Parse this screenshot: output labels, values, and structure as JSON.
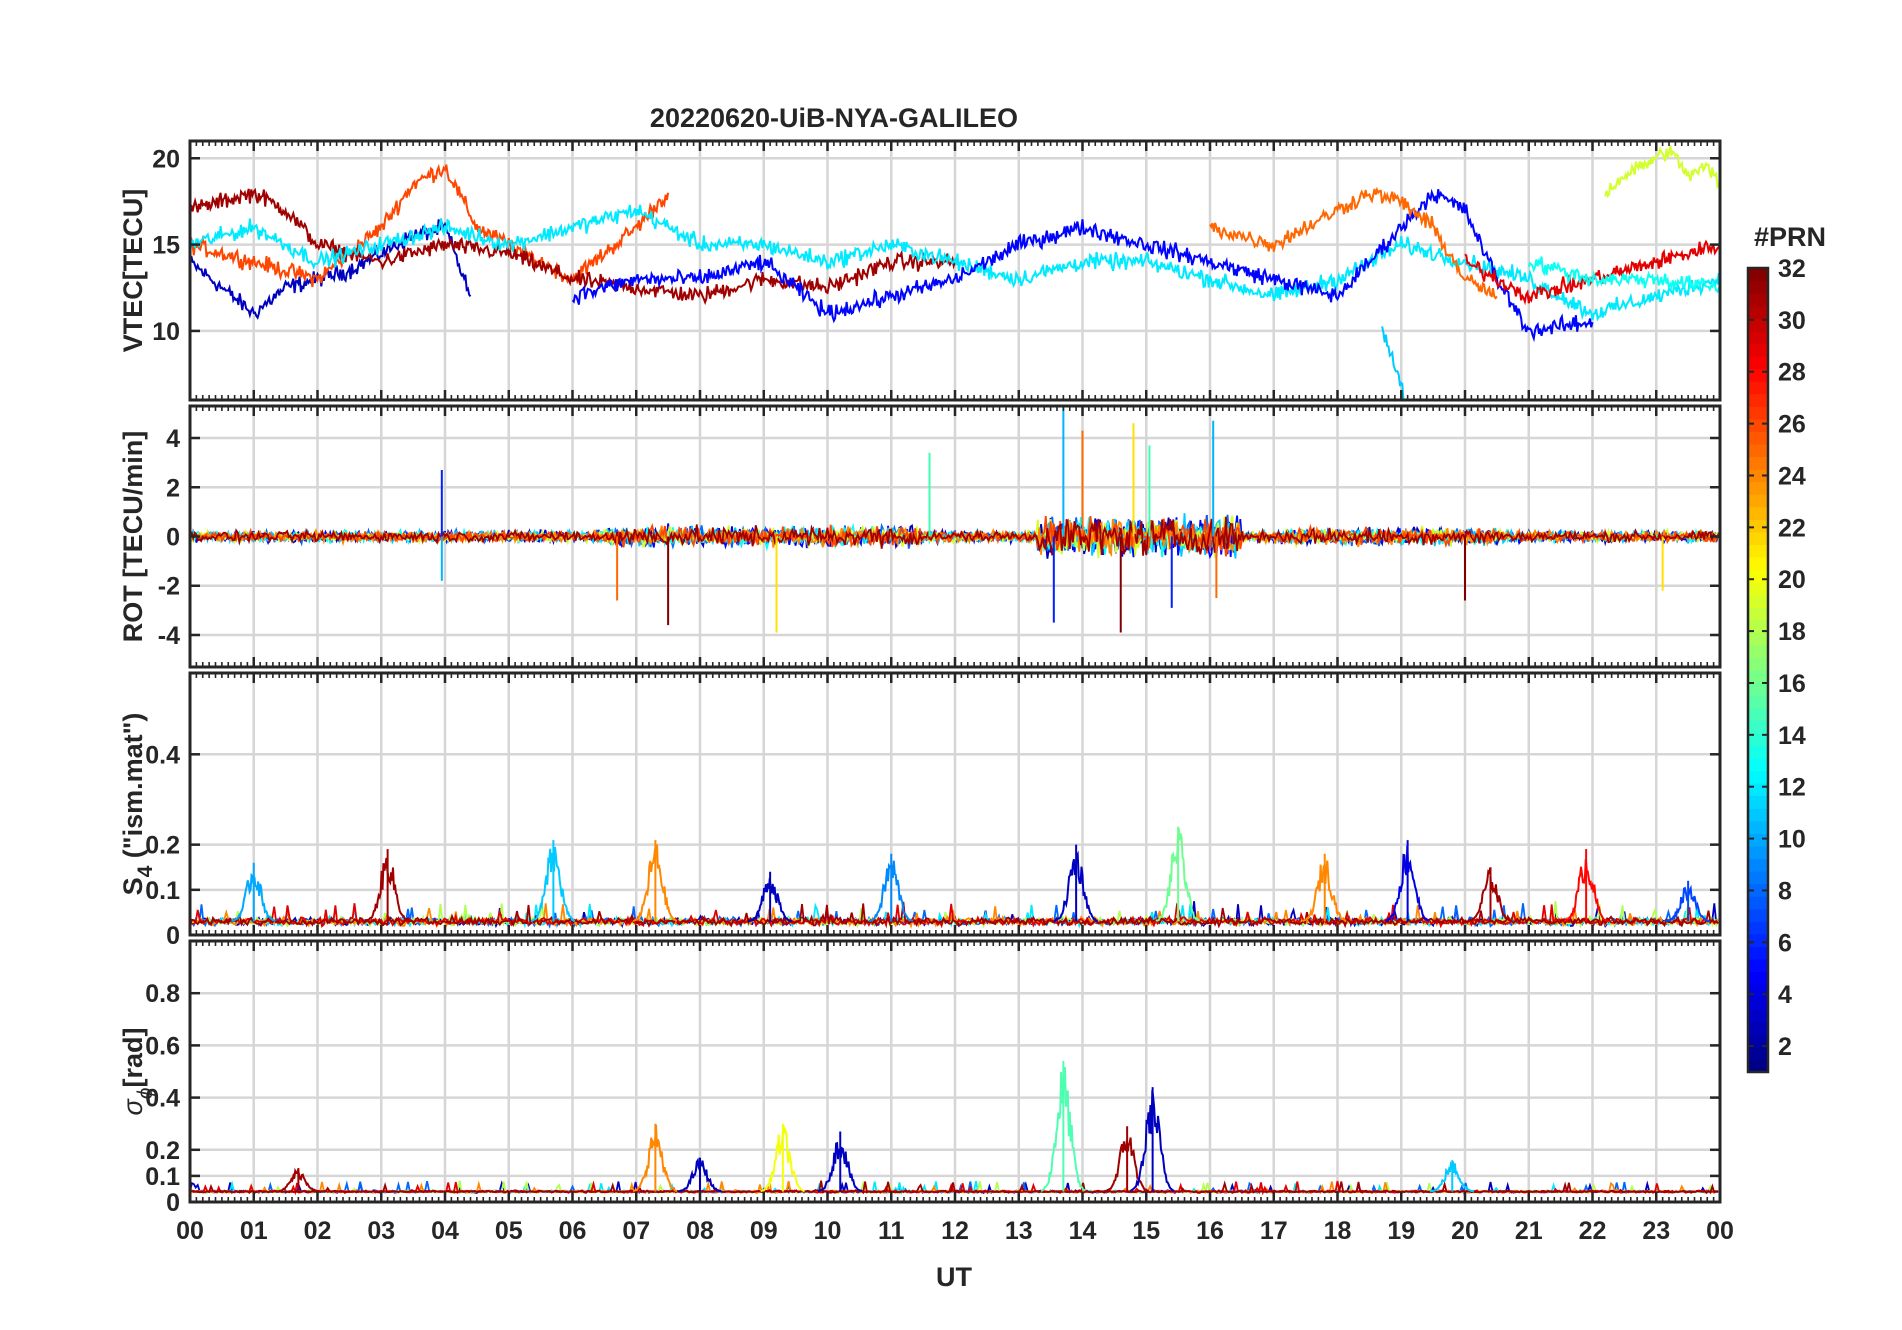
{
  "chart_data": {
    "title": "20220620-UiB-NYA-GALILEO",
    "type": "line",
    "xlabel": "UT",
    "x_ticks": [
      "00",
      "01",
      "02",
      "03",
      "04",
      "05",
      "06",
      "07",
      "08",
      "09",
      "10",
      "11",
      "12",
      "13",
      "14",
      "15",
      "16",
      "17",
      "18",
      "19",
      "20",
      "21",
      "22",
      "23",
      "00"
    ],
    "xlim_hours": [
      0,
      24
    ],
    "grid": true,
    "colorbar": {
      "label": "#PRN",
      "min": 1,
      "max": 32,
      "ticks": [
        2,
        4,
        6,
        8,
        10,
        12,
        14,
        16,
        18,
        20,
        22,
        24,
        26,
        28,
        30,
        32
      ],
      "colormap": "jet"
    },
    "panels": [
      {
        "id": "vtec",
        "ylabel": "VTEC[TECU]",
        "ylim": [
          6,
          21
        ],
        "yticks": [
          10,
          15,
          20
        ],
        "series": [
          {
            "prn": 3,
            "x": [
              0,
              0.5,
              1,
              1.5,
              2,
              2.5,
              3,
              3.5,
              4,
              4.4
            ],
            "y": [
              14,
              12.5,
              11,
              12.5,
              13,
              13.5,
              14.5,
              15.5,
              16,
              12
            ]
          },
          {
            "prn": 26,
            "x": [
              0,
              1,
              2,
              3,
              3.5,
              4,
              4.5,
              5,
              5.5,
              6,
              7,
              7.5
            ],
            "y": [
              15,
              14,
              13,
              16,
              18.5,
              19.5,
              16,
              15,
              14,
              13,
              16,
              18
            ]
          },
          {
            "prn": 31,
            "x": [
              0,
              0.5,
              1,
              1.5,
              2,
              3,
              4,
              5,
              6,
              7,
              8,
              9,
              10,
              11,
              12
            ],
            "y": [
              17,
              17.5,
              18,
              17,
              15,
              14,
              15,
              14.5,
              13,
              12.5,
              12,
              13,
              12.5,
              14,
              14
            ]
          },
          {
            "prn": 12,
            "x": [
              0,
              1,
              2,
              3,
              4,
              5,
              6,
              7,
              8,
              9,
              10,
              11,
              12,
              13,
              14,
              15,
              16,
              17,
              18,
              19,
              20,
              21,
              22,
              23,
              24
            ],
            "y": [
              15,
              16,
              14,
              15,
              16,
              15,
              16,
              17,
              15,
              15,
              14,
              15,
              14,
              13,
              14,
              14,
              13,
              12,
              13,
              15,
              14,
              13,
              11,
              12,
              13
            ]
          },
          {
            "prn": 5,
            "x": [
              6,
              7,
              8,
              9,
              10,
              11,
              12,
              13,
              14,
              15,
              16,
              17,
              18,
              19,
              19.5,
              20,
              20.5,
              21,
              22
            ],
            "y": [
              12,
              13,
              13,
              14,
              11,
              12,
              13,
              15,
              16,
              15,
              14,
              13,
              12,
              16,
              18,
              17,
              13,
              10,
              10.5
            ]
          },
          {
            "prn": 19,
            "x": [
              22.2,
              22.5,
              23,
              23.2,
              23.5,
              23.8,
              24
            ],
            "y": [
              18,
              19,
              20,
              20.5,
              19,
              19.5,
              18.5
            ]
          },
          {
            "prn": 25,
            "x": [
              16,
              17,
              18,
              18.5,
              19,
              19.5,
              20,
              20.5
            ],
            "y": [
              16,
              15,
              17,
              18,
              17.5,
              16,
              13,
              12
            ]
          },
          {
            "prn": 29,
            "x": [
              20,
              21,
              22,
              23,
              24
            ],
            "y": [
              14,
              12,
              13,
              14,
              15
            ]
          },
          {
            "prn": 11,
            "x": [
              18.7,
              19,
              19.05
            ],
            "y": [
              10,
              7,
              6
            ]
          },
          {
            "prn": 13,
            "x": [
              21,
              22,
              23,
              24
            ],
            "y": [
              14,
              13,
              13,
              12.5
            ]
          }
        ]
      },
      {
        "id": "rot",
        "ylabel": "ROT [TECU/min]",
        "ylim": [
          -5.3,
          5.3
        ],
        "yticks": [
          -4,
          -2,
          0,
          2,
          4
        ],
        "spikes": [
          {
            "x": 3.95,
            "y": 2.7
          },
          {
            "x": 3.95,
            "y": -1.8
          },
          {
            "x": 6.7,
            "y": -2.6
          },
          {
            "x": 7.5,
            "y": -3.6
          },
          {
            "x": 9.2,
            "y": -3.9
          },
          {
            "x": 11.6,
            "y": 3.4
          },
          {
            "x": 13.55,
            "y": -3.5
          },
          {
            "x": 13.7,
            "y": 5.3
          },
          {
            "x": 14.0,
            "y": 4.3
          },
          {
            "x": 14.6,
            "y": -3.9
          },
          {
            "x": 14.8,
            "y": 4.6
          },
          {
            "x": 15.05,
            "y": 3.7
          },
          {
            "x": 15.4,
            "y": -2.9
          },
          {
            "x": 16.05,
            "y": 4.7
          },
          {
            "x": 16.1,
            "y": -2.5
          },
          {
            "x": 20.0,
            "y": -2.6
          },
          {
            "x": 23.1,
            "y": -2.2
          }
        ]
      },
      {
        "id": "s4",
        "ylabel": "S4 (\"ism.mat\")",
        "ylim": [
          0,
          0.58
        ],
        "yticks": [
          0,
          0.1,
          0.2,
          0.4
        ],
        "peaks": [
          {
            "x": 1.0,
            "y": 0.16,
            "prn": 10
          },
          {
            "x": 3.1,
            "y": 0.19,
            "prn": 31
          },
          {
            "x": 5.7,
            "y": 0.21,
            "prn": 11
          },
          {
            "x": 7.3,
            "y": 0.21,
            "prn": 24
          },
          {
            "x": 9.1,
            "y": 0.14,
            "prn": 3
          },
          {
            "x": 11.0,
            "y": 0.18,
            "prn": 9
          },
          {
            "x": 13.9,
            "y": 0.2,
            "prn": 3
          },
          {
            "x": 15.5,
            "y": 0.24,
            "prn": 16
          },
          {
            "x": 17.8,
            "y": 0.18,
            "prn": 24
          },
          {
            "x": 19.1,
            "y": 0.21,
            "prn": 4
          },
          {
            "x": 20.4,
            "y": 0.15,
            "prn": 31
          },
          {
            "x": 21.9,
            "y": 0.19,
            "prn": 28
          },
          {
            "x": 23.5,
            "y": 0.12,
            "prn": 7
          }
        ]
      },
      {
        "id": "sigma_phi",
        "ylabel": "σϕ[rad]",
        "ylim": [
          0,
          1.0
        ],
        "yticks": [
          0,
          0.1,
          0.2,
          0.4,
          0.6,
          0.8
        ],
        "peaks": [
          {
            "x": 1.7,
            "y": 0.13,
            "prn": 31
          },
          {
            "x": 7.3,
            "y": 0.3,
            "prn": 24
          },
          {
            "x": 8.0,
            "y": 0.17,
            "prn": 3
          },
          {
            "x": 9.3,
            "y": 0.3,
            "prn": 20
          },
          {
            "x": 10.2,
            "y": 0.27,
            "prn": 3
          },
          {
            "x": 13.7,
            "y": 0.54,
            "prn": 15
          },
          {
            "x": 14.7,
            "y": 0.29,
            "prn": 31
          },
          {
            "x": 15.1,
            "y": 0.44,
            "prn": 3
          },
          {
            "x": 19.8,
            "y": 0.16,
            "prn": 11
          }
        ]
      }
    ]
  }
}
